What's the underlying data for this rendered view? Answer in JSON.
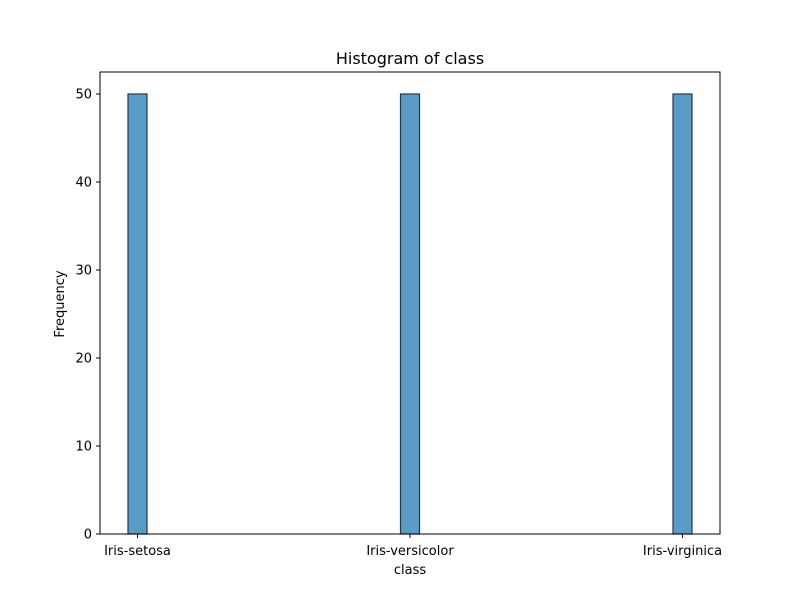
{
  "chart_data": {
    "type": "bar",
    "title": "Histogram of class",
    "xlabel": "class",
    "ylabel": "Frequency",
    "categories": [
      "Iris-setosa",
      "Iris-versicolor",
      "Iris-virginica"
    ],
    "values": [
      50,
      50,
      50
    ],
    "ylim": [
      0,
      52.5
    ],
    "yticks": [
      0,
      10,
      20,
      30,
      40,
      50
    ],
    "grid": false,
    "colors": {
      "bar_fill": "#5b9bc8",
      "bar_edge": "#1f3a4d",
      "axis": "#000000"
    }
  }
}
